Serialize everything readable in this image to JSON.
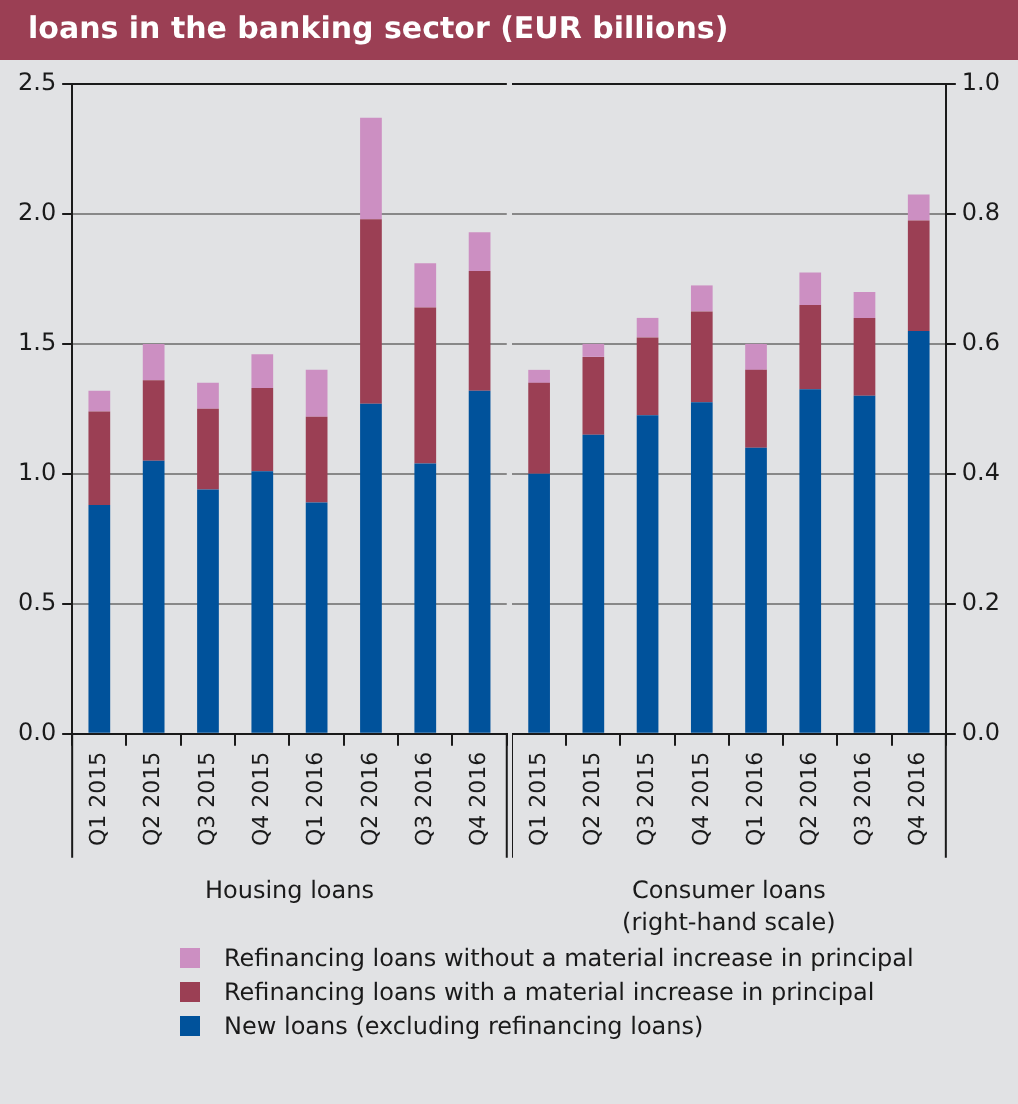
{
  "chart_data": [
    {
      "type": "bar",
      "title": "loans in the banking sector (EUR billions)",
      "categories": [
        "Q1 2015",
        "Q2 2015",
        "Q3 2015",
        "Q4 2015",
        "Q1 2016",
        "Q2 2016",
        "Q3 2016",
        "Q4 2016"
      ],
      "stacked": true,
      "series": [
        {
          "name": "New loans (excluding refinancing loans)",
          "color": "#00529b",
          "values": [
            0.88,
            1.05,
            0.94,
            1.01,
            0.89,
            1.27,
            1.04,
            1.32
          ]
        },
        {
          "name": "Refinancing loans with a material increase in principal",
          "color": "#9b3f54",
          "values": [
            0.36,
            0.31,
            0.31,
            0.32,
            0.33,
            0.71,
            0.6,
            0.46
          ]
        },
        {
          "name": "Refinancing loans without a material increase in principal",
          "color": "#cc8fc2",
          "values": [
            0.08,
            0.14,
            0.1,
            0.13,
            0.18,
            0.39,
            0.17,
            0.15
          ]
        }
      ],
      "ylim": [
        0,
        2.5
      ],
      "yticks": [
        {
          "value": 0,
          "label": "0.0"
        },
        {
          "value": 0.5,
          "label": "0.5"
        },
        {
          "value": 1,
          "label": "1.0"
        },
        {
          "value": 1.5,
          "label": "1.5"
        },
        {
          "value": 2,
          "label": "2.0"
        },
        {
          "value": 2.5,
          "label": "2.5"
        }
      ],
      "grid": "y",
      "legend": "bottom",
      "annotations": [
        "Housing loans"
      ]
    },
    {
      "type": "bar",
      "categories": [
        "Q1 2015",
        "Q2 2015",
        "Q3 2015",
        "Q4 2015",
        "Q1 2016",
        "Q2 2016",
        "Q3 2016",
        "Q4 2016"
      ],
      "stacked": true,
      "series": [
        {
          "color": "#00529b",
          "axis": "y2",
          "values": [
            0.4,
            0.46,
            0.49,
            0.51,
            0.44,
            0.53,
            0.52,
            0.62
          ]
        },
        {
          "color": "#9b3f54",
          "axis": "y2",
          "values": [
            0.14,
            0.12,
            0.12,
            0.14,
            0.12,
            0.13,
            0.12,
            0.17
          ]
        },
        {
          "color": "#cc8fc2",
          "axis": "y2",
          "values": [
            0.02,
            0.02,
            0.03,
            0.04,
            0.04,
            0.05,
            0.04,
            0.04
          ]
        }
      ],
      "y2lim": [
        0,
        1
      ],
      "y2ticks": [
        {
          "value": 0,
          "label": "0.0"
        },
        {
          "value": 0.2,
          "label": "0.2"
        },
        {
          "value": 0.4,
          "label": "0.4"
        },
        {
          "value": 0.6,
          "label": "0.6"
        },
        {
          "value": 0.8,
          "label": "0.8"
        },
        {
          "value": 1,
          "label": "1.0"
        }
      ],
      "grid": "y2",
      "annotations": [
        "Consumer loans\n(right-hand scale)"
      ]
    }
  ]
}
